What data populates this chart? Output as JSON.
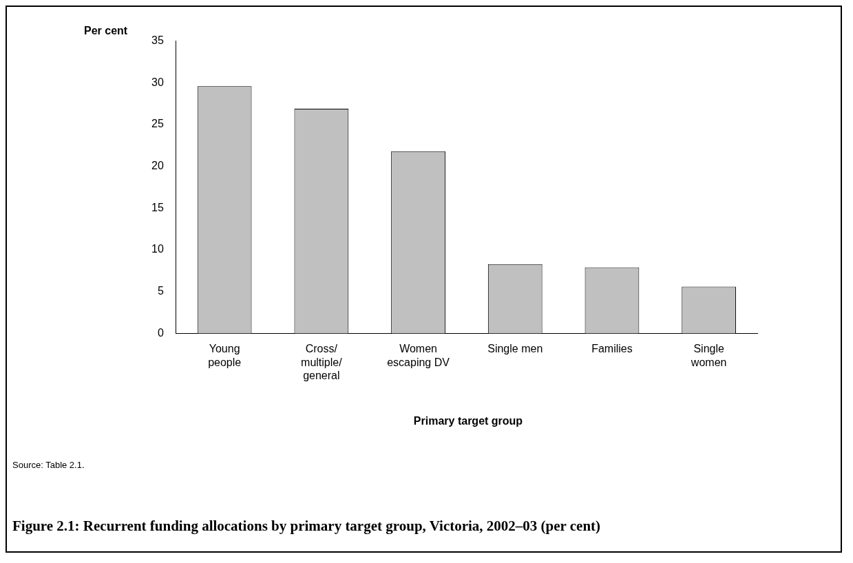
{
  "chart_data": {
    "type": "bar",
    "title": "Figure 2.1: Recurrent funding allocations by primary target group, Victoria, 2002–03 (per cent)",
    "ylabel": "Per cent",
    "xlabel": "Primary target group",
    "categories": [
      "Young people",
      "Cross/multiple/general",
      "Women escaping DV",
      "Single men",
      "Families",
      "Single women"
    ],
    "values": [
      29.6,
      26.9,
      21.8,
      8.3,
      7.9,
      5.6
    ],
    "color": "#c0c0c0",
    "ylim": [
      0,
      35
    ],
    "yticks": [
      0,
      5,
      10,
      15,
      20,
      25,
      30,
      35
    ],
    "grid": false,
    "legend": false,
    "annotations": [
      "Source: Table 2.1."
    ]
  }
}
